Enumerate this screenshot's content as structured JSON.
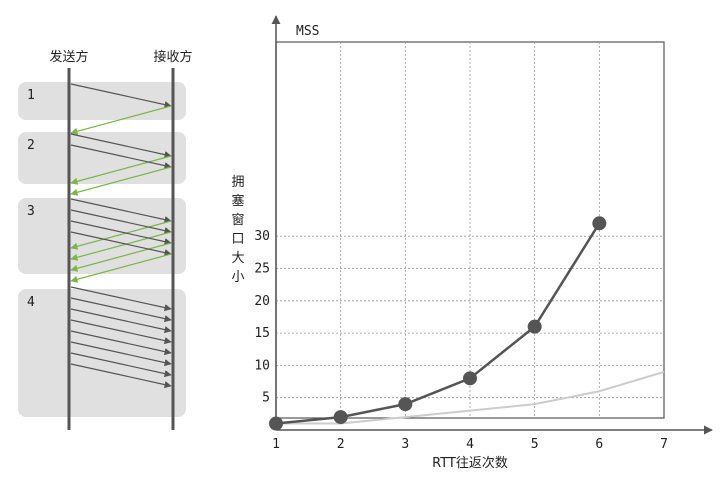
{
  "sequence": {
    "sender_label": "发送方",
    "receiver_label": "接收方",
    "rounds": [
      {
        "label": "1",
        "segments": 1
      },
      {
        "label": "2",
        "segments": 2
      },
      {
        "label": "3",
        "segments": 4
      },
      {
        "label": "4",
        "segments": 8
      }
    ],
    "colors": {
      "data_arrow": "#555555",
      "ack_arrow": "#7ab648",
      "round_box": "#e0e0e0",
      "timeline": "#555555"
    }
  },
  "chart_data": {
    "type": "line",
    "ylabel": "拥塞窗口大小",
    "y_unit": "MSS",
    "xlabel": "RTT往返次数",
    "x": [
      1,
      2,
      3,
      4,
      5,
      6,
      7
    ],
    "xlim": [
      1,
      7
    ],
    "ylim": [
      0,
      31
    ],
    "x_ticks": [
      "1",
      "2",
      "3",
      "4",
      "5",
      "6",
      "7"
    ],
    "y_ticks": [
      "5",
      "10",
      "15",
      "20",
      "25",
      "30"
    ],
    "y_tick_values": [
      5,
      10,
      15,
      20,
      25,
      30
    ],
    "grid": true,
    "series": [
      {
        "x": [
          1,
          2,
          3,
          4,
          5,
          6
        ],
        "values": [
          1,
          2,
          4,
          8,
          16,
          32
        ],
        "color": "#555555",
        "markers": true
      },
      {
        "x": [
          1,
          2,
          3,
          4,
          5,
          6,
          7
        ],
        "values": [
          1,
          1,
          2,
          3,
          4,
          6,
          9
        ],
        "color": "#cccccc",
        "markers": false
      }
    ]
  }
}
